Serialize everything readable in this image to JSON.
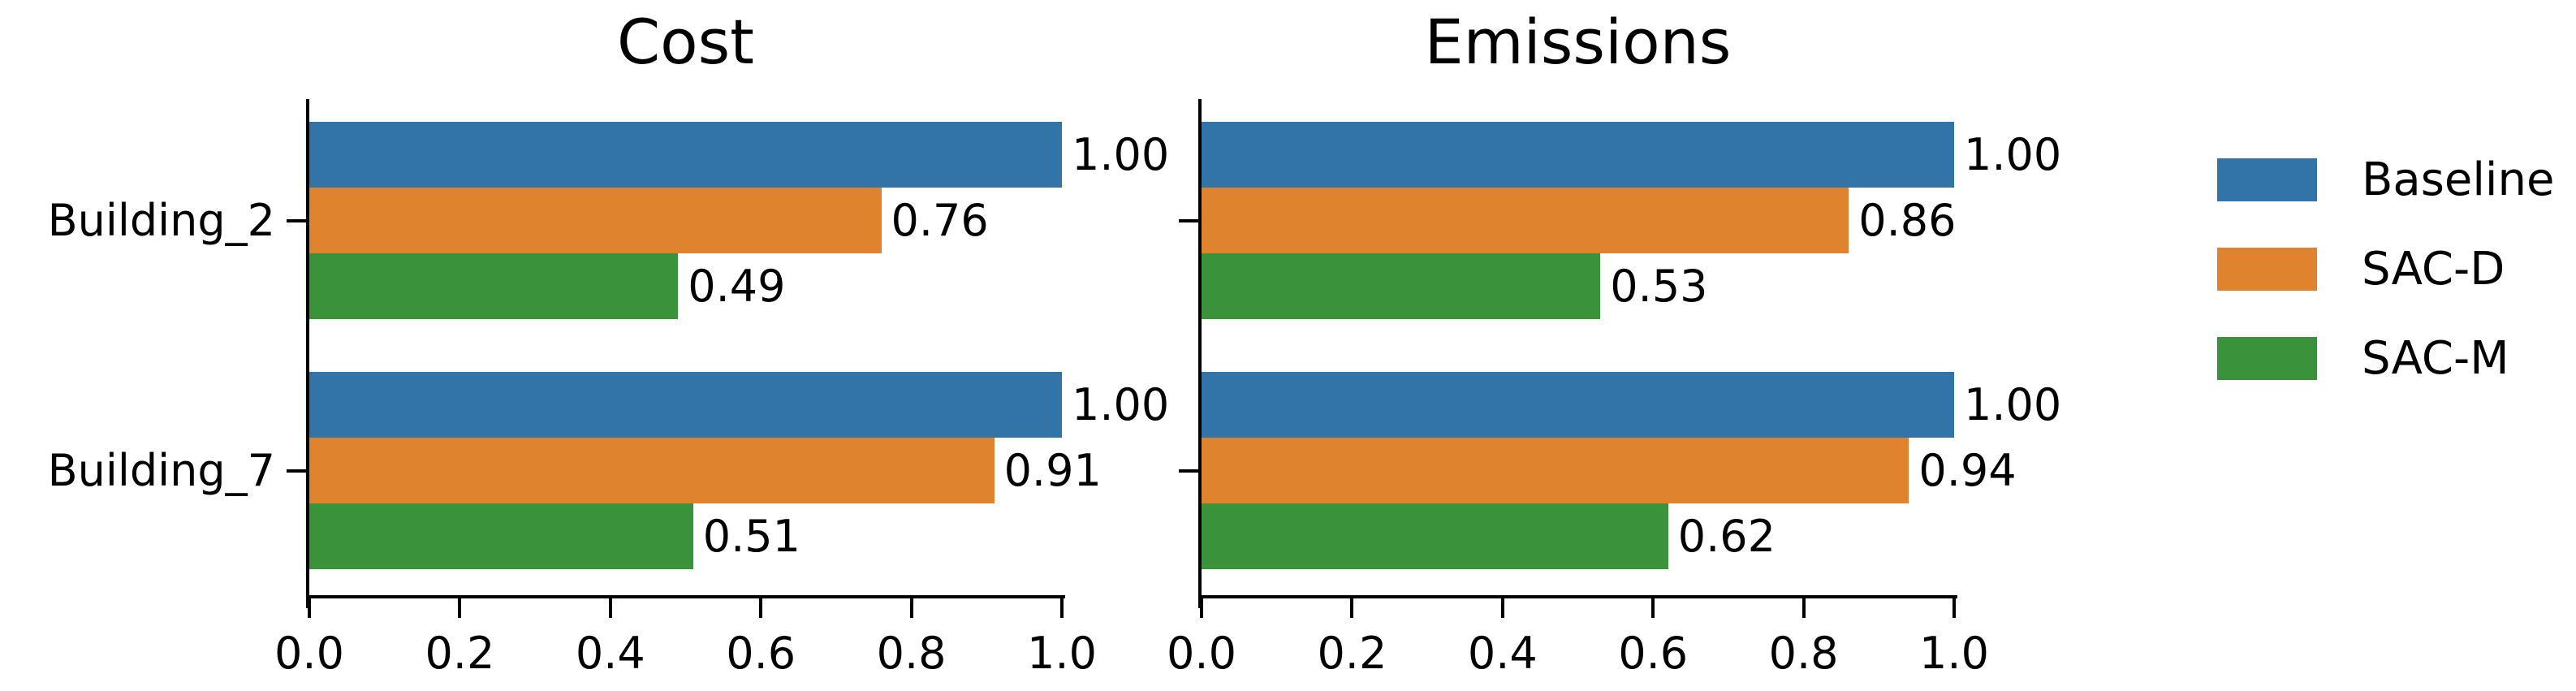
{
  "figure": {
    "background": "#ffffff",
    "text_color": "#000000"
  },
  "chart_data": [
    {
      "type": "bar",
      "orientation": "horizontal",
      "title": "Cost",
      "categories": [
        "Building_2",
        "Building_7"
      ],
      "series": [
        {
          "name": "Baseline",
          "color": "#3274A8",
          "values": [
            1.0,
            1.0
          ]
        },
        {
          "name": "SAC-D",
          "color": "#E0832E",
          "values": [
            0.76,
            0.91
          ]
        },
        {
          "name": "SAC-M",
          "color": "#3A923A",
          "values": [
            0.49,
            0.51
          ]
        }
      ],
      "value_labels": [
        [
          "1.00",
          "0.76",
          "0.49"
        ],
        [
          "1.00",
          "0.91",
          "0.51"
        ]
      ],
      "xlim": [
        0.0,
        1.0
      ],
      "xticks": [
        "0.0",
        "0.2",
        "0.4",
        "0.6",
        "0.8",
        "1.0"
      ],
      "grid": false,
      "show_category_labels": true
    },
    {
      "type": "bar",
      "orientation": "horizontal",
      "title": "Emissions",
      "categories": [
        "Building_2",
        "Building_7"
      ],
      "series": [
        {
          "name": "Baseline",
          "color": "#3274A8",
          "values": [
            1.0,
            1.0
          ]
        },
        {
          "name": "SAC-D",
          "color": "#E0832E",
          "values": [
            0.86,
            0.94
          ]
        },
        {
          "name": "SAC-M",
          "color": "#3A923A",
          "values": [
            0.53,
            0.62
          ]
        }
      ],
      "value_labels": [
        [
          "1.00",
          "0.86",
          "0.53"
        ],
        [
          "1.00",
          "0.94",
          "0.62"
        ]
      ],
      "xlim": [
        0.0,
        1.0
      ],
      "xticks": [
        "0.0",
        "0.2",
        "0.4",
        "0.6",
        "0.8",
        "1.0"
      ],
      "grid": false,
      "show_category_labels": false
    }
  ],
  "legend": {
    "position": "right",
    "entries": [
      {
        "label": "Baseline",
        "color": "#3274A8"
      },
      {
        "label": "SAC-D",
        "color": "#E0832E"
      },
      {
        "label": "SAC-M",
        "color": "#3A923A"
      }
    ]
  }
}
